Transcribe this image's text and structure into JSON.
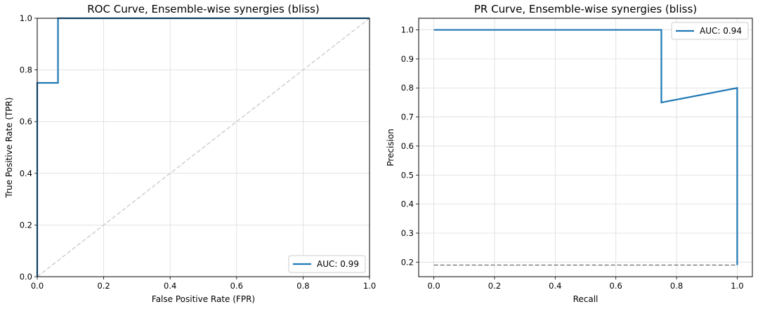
{
  "chart_data": [
    {
      "type": "line",
      "title": "ROC Curve, Ensemble-wise synergies (bliss)",
      "xlabel": "False Positive Rate (FPR)",
      "ylabel": "True Positive Rate (TPR)",
      "xlim": [
        0,
        1
      ],
      "ylim": [
        0,
        1
      ],
      "x_ticks": [
        "0.0",
        "0.2",
        "0.4",
        "0.6",
        "0.8",
        "1.0"
      ],
      "y_ticks": [
        "0.0",
        "0.2",
        "0.4",
        "0.6",
        "0.8",
        "1.0"
      ],
      "grid": true,
      "legend_position": "lower-right",
      "series": [
        {
          "name": "AUC: 0.99",
          "color": "#1f77b4",
          "style": "solid",
          "x": [
            0,
            0,
            0.0625,
            0.0625,
            1
          ],
          "y": [
            0,
            0.75,
            0.75,
            1.0,
            1.0
          ]
        },
        {
          "color": "#cccccc",
          "style": "dashed",
          "x": [
            0,
            1
          ],
          "y": [
            0,
            1
          ]
        }
      ]
    },
    {
      "type": "line",
      "title": "PR Curve, Ensemble-wise synergies (bliss)",
      "xlabel": "Recall",
      "ylabel": "Precision",
      "xlim": [
        -0.05,
        1.05
      ],
      "ylim": [
        0.15,
        1.04
      ],
      "x_ticks": [
        "0.0",
        "0.2",
        "0.4",
        "0.6",
        "0.8",
        "1.0"
      ],
      "y_ticks": [
        "0.2",
        "0.3",
        "0.4",
        "0.5",
        "0.6",
        "0.7",
        "0.8",
        "0.9",
        "1.0"
      ],
      "grid": true,
      "legend_position": "upper-right",
      "series": [
        {
          "name": "AUC: 0.94",
          "color": "#1f77b4",
          "style": "solid",
          "x": [
            0,
            0.75,
            0.75,
            1.0,
            1.0
          ],
          "y": [
            1.0,
            1.0,
            0.75,
            0.8,
            0.19
          ]
        },
        {
          "color": "#777777",
          "style": "dashed",
          "x": [
            0,
            1
          ],
          "y": [
            0.19,
            0.19
          ]
        }
      ]
    }
  ]
}
